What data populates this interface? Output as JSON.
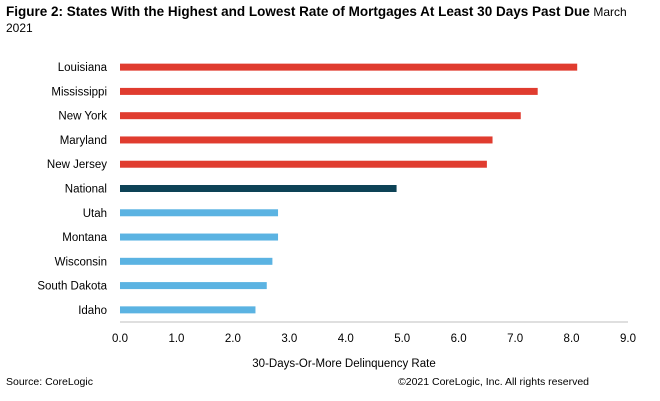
{
  "header": {
    "title": "Figure 2:  States With the Highest and Lowest Rate of Mortgages At Least 30 Days Past Due",
    "subtitle": "March 2021"
  },
  "footer": {
    "source": "Source: CoreLogic",
    "copyright": "©2021 CoreLogic, Inc. All rights reserved"
  },
  "colors": {
    "high": "#e03c2f",
    "national": "#0d4256",
    "low": "#5bb3e2",
    "axis": "#bfbfbf",
    "text": "#000000"
  },
  "chart_data": {
    "type": "bar",
    "orientation": "horizontal",
    "title": "Figure 2:  States With the Highest and Lowest Rate of Mortgages At Least 30 Days Past Due March 2021",
    "xlabel": "30-Days-Or-More  Delinquency Rate",
    "ylabel": "",
    "xlim": [
      0,
      9
    ],
    "xticks": [
      "0.0",
      "1.0",
      "2.0",
      "3.0",
      "4.0",
      "5.0",
      "6.0",
      "7.0",
      "8.0",
      "9.0"
    ],
    "grid": false,
    "categories": [
      "Louisiana",
      "Mississippi",
      "New York",
      "Maryland",
      "New Jersey",
      "National",
      "Utah",
      "Montana",
      "Wisconsin",
      "South Dakota",
      "Idaho"
    ],
    "values": [
      8.1,
      7.4,
      7.1,
      6.6,
      6.5,
      4.9,
      2.8,
      2.8,
      2.7,
      2.6,
      2.4
    ],
    "groups": [
      "high",
      "high",
      "high",
      "high",
      "high",
      "national",
      "low",
      "low",
      "low",
      "low",
      "low"
    ]
  }
}
